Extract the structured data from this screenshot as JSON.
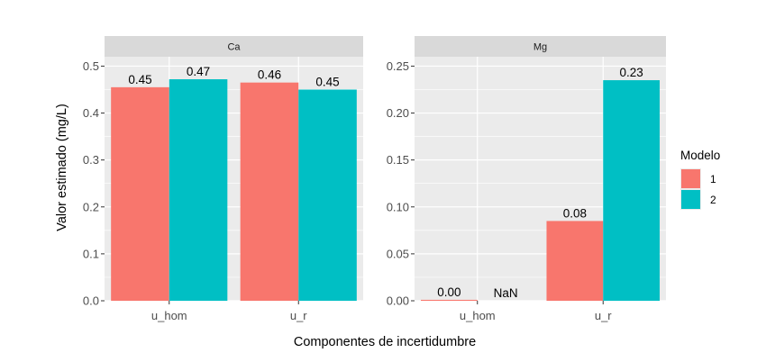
{
  "chart_data": {
    "type": "bar",
    "xlabel": "Componentes de incertidumbre",
    "ylabel": "Valor estimado (mg/L)",
    "legend": {
      "title": "Modelo",
      "position": "right",
      "entries": [
        "1",
        "2"
      ]
    },
    "colors": {
      "1": "#F8766D",
      "2": "#00BFC4",
      "panel_bg": "#EBEBEB",
      "strip_bg": "#D9D9D9",
      "grid": "#FFFFFF"
    },
    "grid": true,
    "categories": [
      "u_hom",
      "u_r"
    ],
    "facets": [
      {
        "strip": "Ca",
        "ylim": [
          0,
          0.52
        ],
        "yticks": [
          0.0,
          0.1,
          0.2,
          0.3,
          0.4,
          0.5
        ],
        "ytick_labels": [
          "0.0",
          "0.1",
          "0.2",
          "0.3",
          "0.4",
          "0.5"
        ],
        "series": [
          {
            "name": "1",
            "values": [
              0.455,
              0.465
            ],
            "labels": [
              "0.45",
              "0.46"
            ]
          },
          {
            "name": "2",
            "values": [
              0.472,
              0.45
            ],
            "labels": [
              "0.47",
              "0.45"
            ]
          }
        ]
      },
      {
        "strip": "Mg",
        "ylim": [
          0,
          0.26
        ],
        "yticks": [
          0.0,
          0.05,
          0.1,
          0.15,
          0.2,
          0.25
        ],
        "ytick_labels": [
          "0.00",
          "0.05",
          "0.10",
          "0.15",
          "0.20",
          "0.25"
        ],
        "series": [
          {
            "name": "1",
            "values": [
              0.001,
              0.085
            ],
            "labels": [
              "0.00",
              "0.08"
            ]
          },
          {
            "name": "2",
            "values": [
              null,
              0.235
            ],
            "labels": [
              "NaN",
              "0.23"
            ]
          }
        ]
      }
    ]
  }
}
